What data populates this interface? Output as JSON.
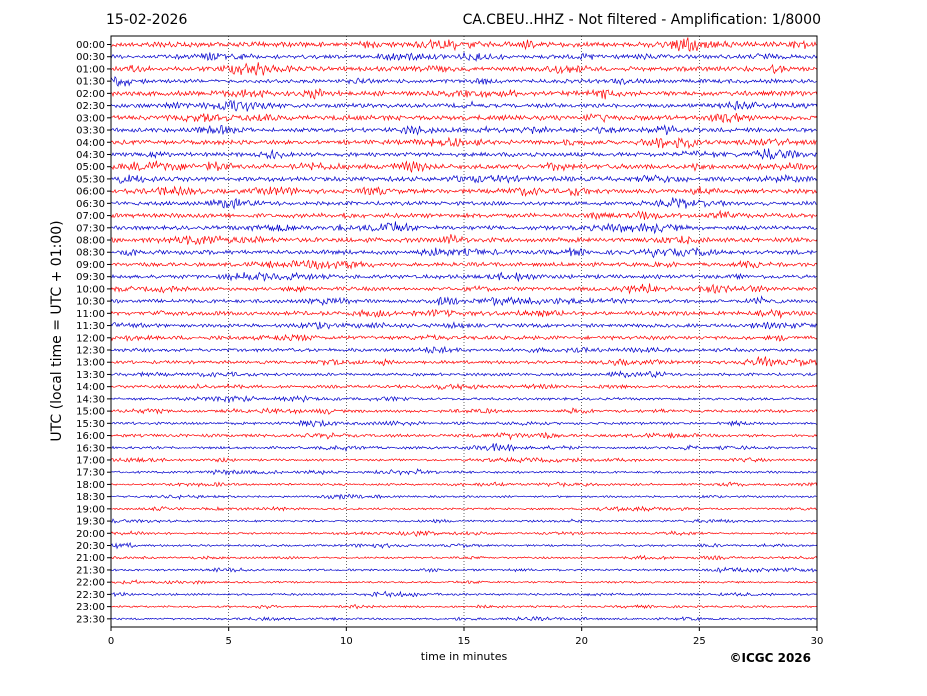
{
  "header": {
    "date": "15-02-2026",
    "station": "CA.CBEU..HHZ - Not filtered - Amplification: 1/8000"
  },
  "footer": {
    "copyright": "©ICGC 2026"
  },
  "chart_data": {
    "type": "line",
    "xlabel": "time in minutes",
    "ylabel": "UTC (local time = UTC + 01:00)",
    "xlim": [
      0,
      30
    ],
    "x_ticks": [
      0,
      5,
      10,
      15,
      20,
      25,
      30
    ],
    "grid": "vertical dotted lines at x ticks",
    "y_tick_labels": [
      "00:00",
      "00:30",
      "01:00",
      "01:30",
      "02:00",
      "02:30",
      "03:00",
      "03:30",
      "04:00",
      "04:30",
      "05:00",
      "05:30",
      "06:00",
      "06:30",
      "07:00",
      "07:30",
      "08:00",
      "08:30",
      "09:00",
      "09:30",
      "10:00",
      "10:30",
      "11:00",
      "11:30",
      "12:00",
      "12:30",
      "13:00",
      "13:30",
      "14:00",
      "14:30",
      "15:00",
      "15:30",
      "16:00",
      "16:30",
      "17:00",
      "17:30",
      "18:00",
      "18:30",
      "19:00",
      "19:30",
      "20:00",
      "20:30",
      "21:00",
      "21:30",
      "22:00",
      "22:30",
      "23:00",
      "23:30"
    ],
    "trace_colors": [
      "#ff0000",
      "#0000cc"
    ],
    "trace_amplitude": [
      3.2,
      2.6,
      2.9,
      2.5,
      3.0,
      2.7,
      3.1,
      2.6,
      2.8,
      2.6,
      3.2,
      2.9,
      2.9,
      2.5,
      2.8,
      2.5,
      3.0,
      2.8,
      2.6,
      2.5,
      2.4,
      2.3,
      2.6,
      2.3,
      2.5,
      2.2,
      2.0,
      1.8,
      1.9,
      1.7,
      1.8,
      1.7,
      1.9,
      1.6,
      1.4,
      1.4,
      1.4,
      1.3,
      1.3,
      1.3,
      1.2,
      1.3,
      1.2,
      1.3,
      1.2,
      1.4,
      1.3,
      1.2
    ]
  }
}
